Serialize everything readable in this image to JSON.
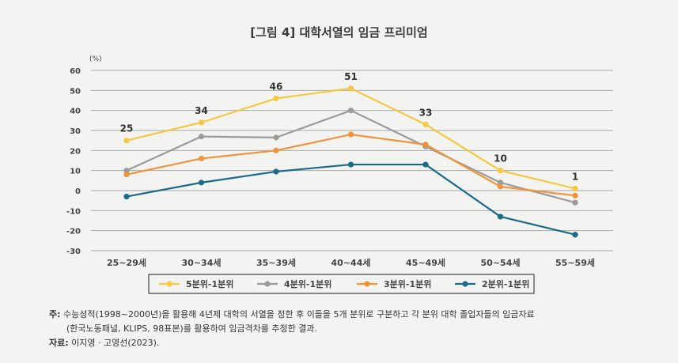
{
  "figure_title": "[그림 4] 대학서열의 임금 프리미엄",
  "chart_data": {
    "type": "line",
    "unit_label": "(%)",
    "categories": [
      "25~29세",
      "30~34세",
      "35~39세",
      "40~44세",
      "45~49세",
      "50~54세",
      "55~59세"
    ],
    "ylim": [
      -30,
      60
    ],
    "yticks": [
      60,
      50,
      40,
      30,
      20,
      10,
      0,
      -10,
      -20,
      -30
    ],
    "grid": true,
    "legend_position": "bottom",
    "series": [
      {
        "name": "5분위-1분위",
        "color": "#f5c842",
        "values": [
          25,
          34,
          46,
          51,
          33,
          10,
          1
        ],
        "labels": [
          "25",
          "34",
          "46",
          "51",
          "33",
          "10",
          "1"
        ]
      },
      {
        "name": "4분위-1분위",
        "color": "#9b9b9b",
        "values": [
          10,
          27,
          26.5,
          40,
          22,
          4,
          -6
        ]
      },
      {
        "name": "3분위-1분위",
        "color": "#ef943a",
        "values": [
          8,
          16,
          20,
          28,
          23,
          2,
          -2.5
        ]
      },
      {
        "name": "2분위-1분위",
        "color": "#1a6a8a",
        "values": [
          -3,
          4,
          9.5,
          13,
          13,
          -13,
          -22
        ]
      }
    ]
  },
  "notes": {
    "note_label": "주:",
    "note_line1": " 수능성적(1998~2000년)을 활용해 4년제 대학의 서열을 정한 후 이들을 5개 분위로 구분하고 각 분위 대학 졸업자들의 임금자료",
    "note_line2": "(한국노동패널, KLIPS, 98표본)를 활용하여 임금격차를 추정한 결과.",
    "source_label": "자료:",
    "source_text": " 이지영 · 고영선(2023)."
  }
}
